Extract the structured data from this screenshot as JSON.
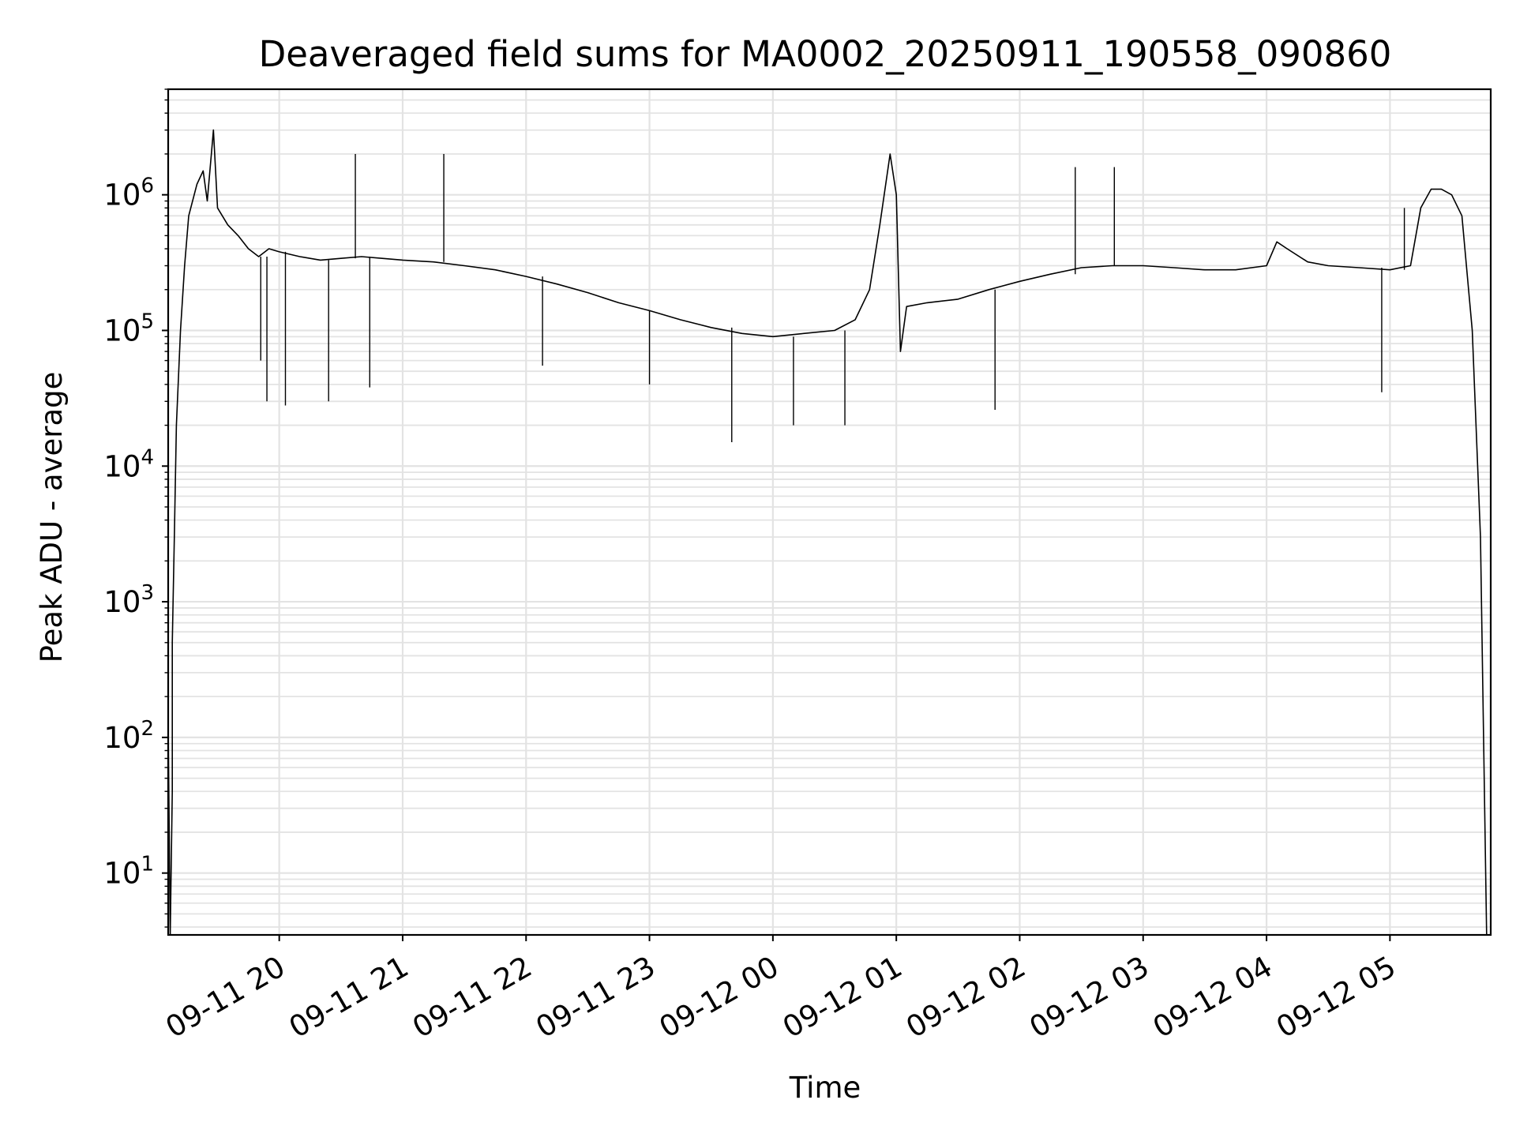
{
  "chart_data": {
    "type": "line",
    "title": "Deaveraged field sums for MA0002_20250911_190558_090860",
    "xlabel": "Time",
    "ylabel": "Peak ADU - average",
    "y_scale": "log",
    "grid": true,
    "x_range": [
      "2025-09-11 19:06",
      "2025-09-12 05:49"
    ],
    "ylim": [
      3.5,
      6000000
    ],
    "x_ticks": [
      {
        "value": "2025-09-11 20:00",
        "label": "09-11 20"
      },
      {
        "value": "2025-09-11 21:00",
        "label": "09-11 21"
      },
      {
        "value": "2025-09-11 22:00",
        "label": "09-11 22"
      },
      {
        "value": "2025-09-11 23:00",
        "label": "09-11 23"
      },
      {
        "value": "2025-09-12 00:00",
        "label": "09-12 00"
      },
      {
        "value": "2025-09-12 01:00",
        "label": "09-12 01"
      },
      {
        "value": "2025-09-12 02:00",
        "label": "09-12 02"
      },
      {
        "value": "2025-09-12 03:00",
        "label": "09-12 03"
      },
      {
        "value": "2025-09-12 04:00",
        "label": "09-12 04"
      },
      {
        "value": "2025-09-12 05:00",
        "label": "09-12 05"
      }
    ],
    "y_ticks": [
      {
        "value": 10,
        "base": "10",
        "exp": "1"
      },
      {
        "value": 100,
        "base": "10",
        "exp": "2"
      },
      {
        "value": 1000,
        "base": "10",
        "exp": "3"
      },
      {
        "value": 10000,
        "base": "10",
        "exp": "4"
      },
      {
        "value": 100000,
        "base": "10",
        "exp": "5"
      },
      {
        "value": 1000000,
        "base": "10",
        "exp": "6"
      }
    ],
    "series": [
      {
        "color": "#000000",
        "points": [
          [
            "2025-09-11 19:06",
            3.5
          ],
          [
            "2025-09-11 19:06",
            120
          ],
          [
            "2025-09-11 19:07",
            3.5
          ],
          [
            "2025-09-11 19:08",
            40
          ],
          [
            "2025-09-11 19:08",
            500
          ],
          [
            "2025-09-11 19:09",
            3000
          ],
          [
            "2025-09-11 19:10",
            20000
          ],
          [
            "2025-09-11 19:12",
            100000
          ],
          [
            "2025-09-11 19:14",
            300000
          ],
          [
            "2025-09-11 19:16",
            700000
          ],
          [
            "2025-09-11 19:20",
            1200000
          ],
          [
            "2025-09-11 19:23",
            1500000
          ],
          [
            "2025-09-11 19:25",
            900000
          ],
          [
            "2025-09-11 19:27",
            2000000
          ],
          [
            "2025-09-11 19:28",
            3000000
          ],
          [
            "2025-09-11 19:30",
            800000
          ],
          [
            "2025-09-11 19:35",
            600000
          ],
          [
            "2025-09-11 19:40",
            500000
          ],
          [
            "2025-09-11 19:45",
            400000
          ],
          [
            "2025-09-11 19:50",
            350000
          ],
          [
            "2025-09-11 19:55",
            400000
          ],
          [
            "2025-09-11 20:00",
            380000
          ],
          [
            "2025-09-11 20:10",
            350000
          ],
          [
            "2025-09-11 20:20",
            330000
          ],
          [
            "2025-09-11 20:30",
            340000
          ],
          [
            "2025-09-11 20:40",
            350000
          ],
          [
            "2025-09-11 20:50",
            340000
          ],
          [
            "2025-09-11 21:00",
            330000
          ],
          [
            "2025-09-11 21:15",
            320000
          ],
          [
            "2025-09-11 21:30",
            300000
          ],
          [
            "2025-09-11 21:45",
            280000
          ],
          [
            "2025-09-11 22:00",
            250000
          ],
          [
            "2025-09-11 22:15",
            220000
          ],
          [
            "2025-09-11 22:30",
            190000
          ],
          [
            "2025-09-11 22:45",
            160000
          ],
          [
            "2025-09-11 23:00",
            140000
          ],
          [
            "2025-09-11 23:15",
            120000
          ],
          [
            "2025-09-11 23:30",
            105000
          ],
          [
            "2025-09-11 23:45",
            95000
          ],
          [
            "2025-09-12 00:00",
            90000
          ],
          [
            "2025-09-12 00:15",
            95000
          ],
          [
            "2025-09-12 00:30",
            100000
          ],
          [
            "2025-09-12 00:40",
            120000
          ],
          [
            "2025-09-12 00:47",
            200000
          ],
          [
            "2025-09-12 00:52",
            600000
          ],
          [
            "2025-09-12 00:57",
            2000000
          ],
          [
            "2025-09-12 01:00",
            1000000
          ],
          [
            "2025-09-12 01:02",
            70000
          ],
          [
            "2025-09-12 01:05",
            150000
          ],
          [
            "2025-09-12 01:15",
            160000
          ],
          [
            "2025-09-12 01:30",
            170000
          ],
          [
            "2025-09-12 01:45",
            200000
          ],
          [
            "2025-09-12 02:00",
            230000
          ],
          [
            "2025-09-12 02:15",
            260000
          ],
          [
            "2025-09-12 02:30",
            290000
          ],
          [
            "2025-09-12 02:45",
            300000
          ],
          [
            "2025-09-12 03:00",
            300000
          ],
          [
            "2025-09-12 03:15",
            290000
          ],
          [
            "2025-09-12 03:30",
            280000
          ],
          [
            "2025-09-12 03:45",
            280000
          ],
          [
            "2025-09-12 04:00",
            300000
          ],
          [
            "2025-09-12 04:05",
            450000
          ],
          [
            "2025-09-12 04:10",
            400000
          ],
          [
            "2025-09-12 04:20",
            320000
          ],
          [
            "2025-09-12 04:30",
            300000
          ],
          [
            "2025-09-12 04:45",
            290000
          ],
          [
            "2025-09-12 05:00",
            280000
          ],
          [
            "2025-09-12 05:10",
            300000
          ],
          [
            "2025-09-12 05:15",
            800000
          ],
          [
            "2025-09-12 05:20",
            1100000
          ],
          [
            "2025-09-12 05:25",
            1100000
          ],
          [
            "2025-09-12 05:30",
            1000000
          ],
          [
            "2025-09-12 05:35",
            700000
          ],
          [
            "2025-09-12 05:40",
            100000
          ],
          [
            "2025-09-12 05:44",
            3000
          ],
          [
            "2025-09-12 05:47",
            3.5
          ]
        ],
        "spikes": [
          [
            "2025-09-11 19:51",
            60000
          ],
          [
            "2025-09-11 19:54",
            30000
          ],
          [
            "2025-09-11 20:03",
            28000
          ],
          [
            "2025-09-11 20:24",
            30000
          ],
          [
            "2025-09-11 20:37",
            2000000
          ],
          [
            "2025-09-11 20:44",
            38000
          ],
          [
            "2025-09-11 21:20",
            2000000
          ],
          [
            "2025-09-11 22:08",
            55000
          ],
          [
            "2025-09-11 23:00",
            40000
          ],
          [
            "2025-09-11 23:40",
            15000
          ],
          [
            "2025-09-12 00:10",
            20000
          ],
          [
            "2025-09-12 00:35",
            20000
          ],
          [
            "2025-09-12 01:48",
            26000
          ],
          [
            "2025-09-12 02:27",
            1600000
          ],
          [
            "2025-09-12 02:46",
            1600000
          ],
          [
            "2025-09-12 04:56",
            35000
          ],
          [
            "2025-09-12 05:07",
            800000
          ]
        ]
      }
    ]
  }
}
